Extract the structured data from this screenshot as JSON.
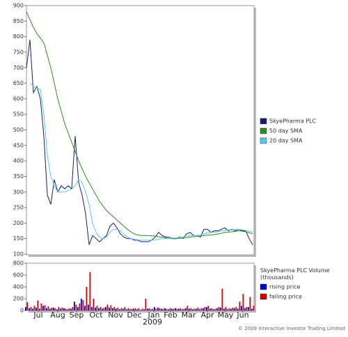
{
  "chart_data": [
    {
      "type": "line",
      "xlim": [
        0,
        65
      ],
      "ylim": [
        100,
        900
      ],
      "yticks": [
        100,
        150,
        200,
        250,
        300,
        350,
        400,
        450,
        500,
        550,
        600,
        650,
        700,
        750,
        800,
        850,
        900
      ],
      "series": [
        {
          "name": "SkyePharma PLC",
          "color": "#1c1c6e",
          "values": [
            700,
            790,
            620,
            640,
            600,
            480,
            290,
            260,
            340,
            300,
            320,
            310,
            320,
            310,
            480,
            330,
            290,
            230,
            130,
            160,
            150,
            140,
            150,
            160,
            190,
            200,
            185,
            165,
            155,
            150,
            150,
            145,
            145,
            140,
            140,
            140,
            145,
            155,
            170,
            160,
            155,
            155,
            150,
            150,
            155,
            150,
            165,
            170,
            160,
            160,
            155,
            180,
            180,
            170,
            175,
            175,
            180,
            185,
            175,
            180,
            175,
            180,
            175,
            175,
            150,
            130
          ]
        },
        {
          "name": "50 day SMA",
          "color": "#2e8b1e",
          "values": [
            880,
            855,
            830,
            810,
            795,
            780,
            740,
            700,
            650,
            600,
            560,
            520,
            490,
            460,
            430,
            400,
            375,
            350,
            330,
            310,
            290,
            270,
            255,
            240,
            230,
            220,
            210,
            200,
            190,
            180,
            172,
            165,
            162,
            160,
            160,
            160,
            159,
            158,
            156,
            155,
            152,
            150,
            150,
            150,
            151,
            152,
            153,
            155,
            156,
            157,
            158,
            160,
            161,
            162,
            163,
            165,
            167,
            170,
            171,
            172,
            173,
            175,
            174,
            172,
            169,
            165
          ]
        },
        {
          "name": "20 day SMA",
          "color": "#5cc6ea",
          "values": [
            null,
            650,
            640,
            635,
            630,
            550,
            420,
            350,
            320,
            300,
            300,
            300,
            305,
            310,
            320,
            340,
            330,
            300,
            260,
            200,
            170,
            155,
            150,
            155,
            170,
            180,
            180,
            175,
            165,
            155,
            150,
            148,
            146,
            145,
            145,
            145,
            145,
            146,
            148,
            150,
            150,
            150,
            152,
            152,
            153,
            155,
            158,
            160,
            160,
            160,
            162,
            165,
            168,
            170,
            170,
            172,
            175,
            176,
            178,
            178,
            180,
            180,
            178,
            176,
            174,
            170
          ]
        }
      ]
    },
    {
      "type": "bar",
      "legend_title": "SkyePharma PLC Volume (thousands)",
      "xlim": [
        0,
        65
      ],
      "xticks": [
        {
          "value": 3.4,
          "label": "Jul"
        },
        {
          "value": 9,
          "label": "Aug"
        },
        {
          "value": 14.4,
          "label": "Sep"
        },
        {
          "value": 20,
          "label": "Oct"
        },
        {
          "value": 25.6,
          "label": "Nov"
        },
        {
          "value": 31,
          "label": "Dec"
        },
        {
          "value": 36.6,
          "label": "Jan"
        },
        {
          "value": 41.4,
          "label": "Feb"
        },
        {
          "value": 46.6,
          "label": "Mar"
        },
        {
          "value": 52,
          "label": "Apr"
        },
        {
          "value": 57.2,
          "label": "May"
        },
        {
          "value": 62.2,
          "label": "Jun"
        }
      ],
      "year_label": "2009",
      "ylim": [
        0,
        800
      ],
      "yticks": [
        0,
        200,
        400,
        600,
        800
      ],
      "series": [
        {
          "name": "rising price",
          "color": "#0000cc",
          "values": [
            60,
            40,
            30,
            50,
            30,
            80,
            40,
            30,
            50,
            20,
            30,
            40,
            20,
            30,
            150,
            60,
            200,
            80,
            100,
            60,
            50,
            40,
            30,
            60,
            50,
            40,
            30,
            20,
            30,
            20,
            20,
            30,
            20,
            10,
            20,
            30,
            20,
            60,
            50,
            30,
            40,
            20,
            30,
            40,
            30,
            20,
            40,
            30,
            20,
            30,
            20,
            40,
            60,
            30,
            20,
            40,
            50,
            30,
            20,
            30,
            40,
            30,
            80,
            40,
            60,
            30
          ]
        },
        {
          "name": "falling price",
          "color": "#cc0000",
          "values": [
            140,
            60,
            80,
            170,
            120,
            90,
            70,
            50,
            40,
            60,
            50,
            30,
            40,
            60,
            100,
            120,
            180,
            400,
            650,
            200,
            80,
            60,
            50,
            100,
            90,
            60,
            50,
            40,
            60,
            40,
            30,
            40,
            40,
            30,
            200,
            40,
            30,
            30,
            40,
            30,
            30,
            40,
            30,
            30,
            40,
            30,
            80,
            40,
            30,
            50,
            40,
            60,
            80,
            40,
            30,
            60,
            370,
            60,
            40,
            50,
            60,
            150,
            280,
            60,
            230,
            80
          ]
        }
      ]
    }
  ],
  "footer": "© 2009 Interactive Investor Trading Limited"
}
